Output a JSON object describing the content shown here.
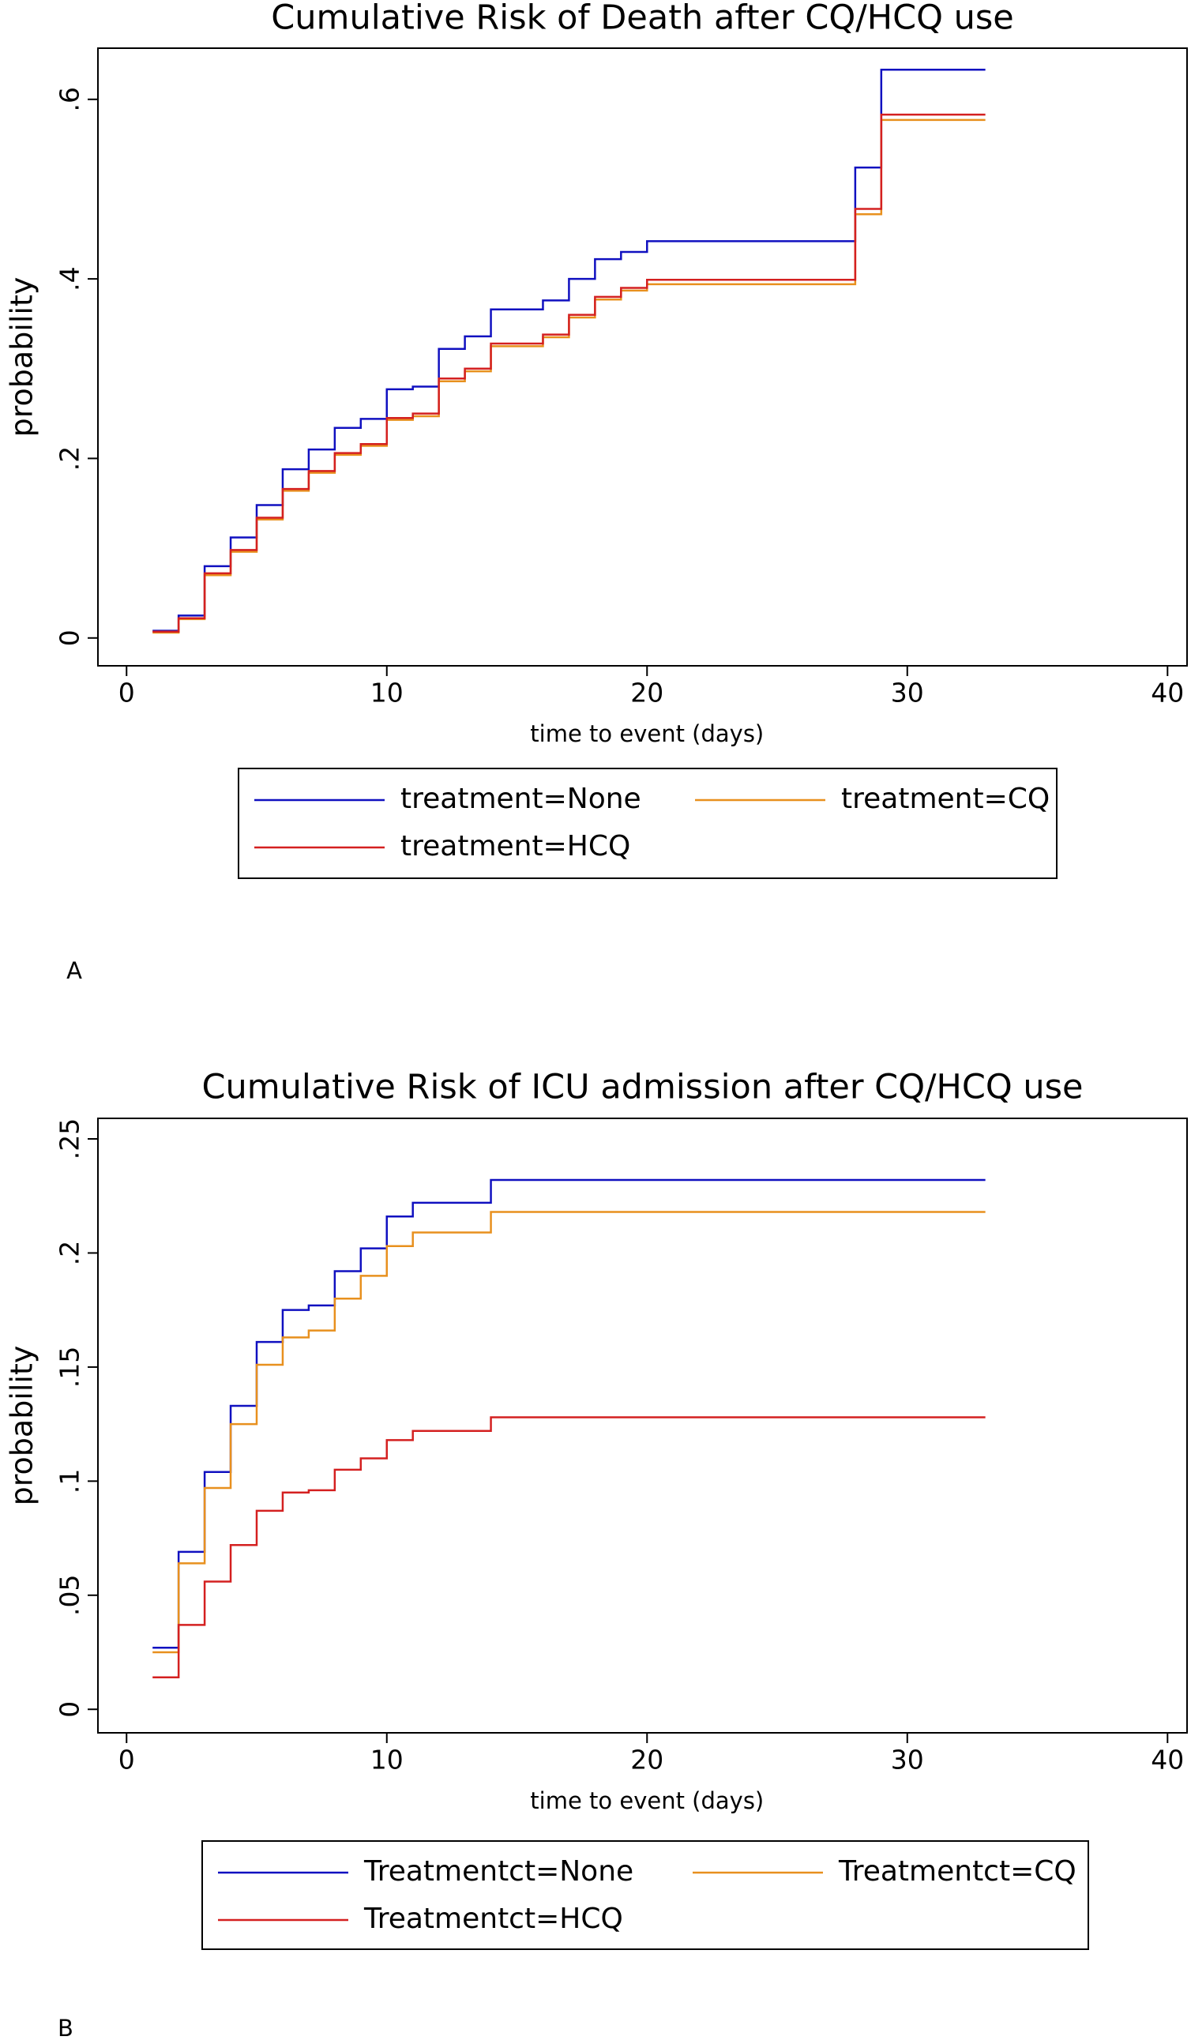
{
  "chart_data": [
    {
      "type": "line",
      "step": "post",
      "title": "Cumulative Risk of Death after CQ/HCQ use",
      "xlabel": "time to event (days)",
      "ylabel": "probability",
      "panel_label": "A",
      "x": [
        1,
        2,
        3,
        4,
        5,
        6,
        7,
        8,
        9,
        10,
        11,
        12,
        13,
        14,
        16,
        17,
        18,
        19,
        20,
        28,
        29,
        33
      ],
      "series": [
        {
          "name": "treatment=None",
          "color": "#1010c0",
          "values": [
            0.008,
            0.025,
            0.08,
            0.112,
            0.148,
            0.188,
            0.21,
            0.234,
            0.244,
            0.277,
            0.28,
            0.322,
            0.336,
            0.366,
            0.376,
            0.4,
            0.422,
            0.43,
            0.442,
            0.524,
            0.633,
            0.633
          ]
        },
        {
          "name": "treatment=CQ",
          "color": "#e8901e",
          "values": [
            0.006,
            0.021,
            0.07,
            0.096,
            0.132,
            0.164,
            0.184,
            0.204,
            0.214,
            0.243,
            0.247,
            0.286,
            0.297,
            0.325,
            0.335,
            0.357,
            0.377,
            0.387,
            0.394,
            0.472,
            0.577,
            0.577
          ]
        },
        {
          "name": "treatment=HCQ",
          "color": "#d42020",
          "values": [
            0.007,
            0.022,
            0.072,
            0.098,
            0.134,
            0.166,
            0.186,
            0.206,
            0.216,
            0.245,
            0.25,
            0.289,
            0.3,
            0.328,
            0.338,
            0.36,
            0.38,
            0.39,
            0.399,
            0.478,
            0.583,
            0.583
          ]
        }
      ],
      "xlim": [
        -1.1,
        40.75
      ],
      "xticks": [
        0,
        10,
        20,
        30,
        40
      ],
      "ylim": [
        -0.031,
        0.657
      ],
      "yticks": [
        0,
        {
          "value": 0.2,
          "label": ".2"
        },
        {
          "value": 0.4,
          "label": ".4"
        },
        {
          "value": 0.6,
          "label": ".6"
        }
      ]
    },
    {
      "type": "line",
      "step": "post",
      "title": "Cumulative Risk of ICU admission after CQ/HCQ use",
      "xlabel": "time to event (days)",
      "ylabel": "probability",
      "panel_label": "B",
      "x": [
        1,
        2,
        3,
        4,
        5,
        6,
        7,
        8,
        9,
        10,
        11,
        14,
        33
      ],
      "series": [
        {
          "name": "Treatmentct=None",
          "color": "#1010c0",
          "values": [
            0.027,
            0.069,
            0.104,
            0.133,
            0.161,
            0.175,
            0.177,
            0.192,
            0.202,
            0.216,
            0.222,
            0.232,
            0.232
          ]
        },
        {
          "name": "Treatmentct=CQ",
          "color": "#e8901e",
          "values": [
            0.025,
            0.064,
            0.097,
            0.125,
            0.151,
            0.163,
            0.166,
            0.18,
            0.19,
            0.203,
            0.209,
            0.218,
            0.218
          ]
        },
        {
          "name": "Treatmentct=HCQ",
          "color": "#d42020",
          "values": [
            0.014,
            0.037,
            0.056,
            0.072,
            0.087,
            0.095,
            0.096,
            0.105,
            0.11,
            0.118,
            0.122,
            0.128,
            0.128
          ]
        }
      ],
      "xlim": [
        -1.1,
        40.75
      ],
      "xticks": [
        0,
        10,
        20,
        30,
        40
      ],
      "ylim": [
        -0.0103,
        0.259
      ],
      "yticks": [
        0,
        {
          "value": 0.05,
          "label": ".05"
        },
        {
          "value": 0.1,
          "label": ".1"
        },
        {
          "value": 0.15,
          "label": ".15"
        },
        {
          "value": 0.2,
          "label": ".2"
        },
        {
          "value": 0.25,
          "label": ".25"
        }
      ]
    }
  ]
}
